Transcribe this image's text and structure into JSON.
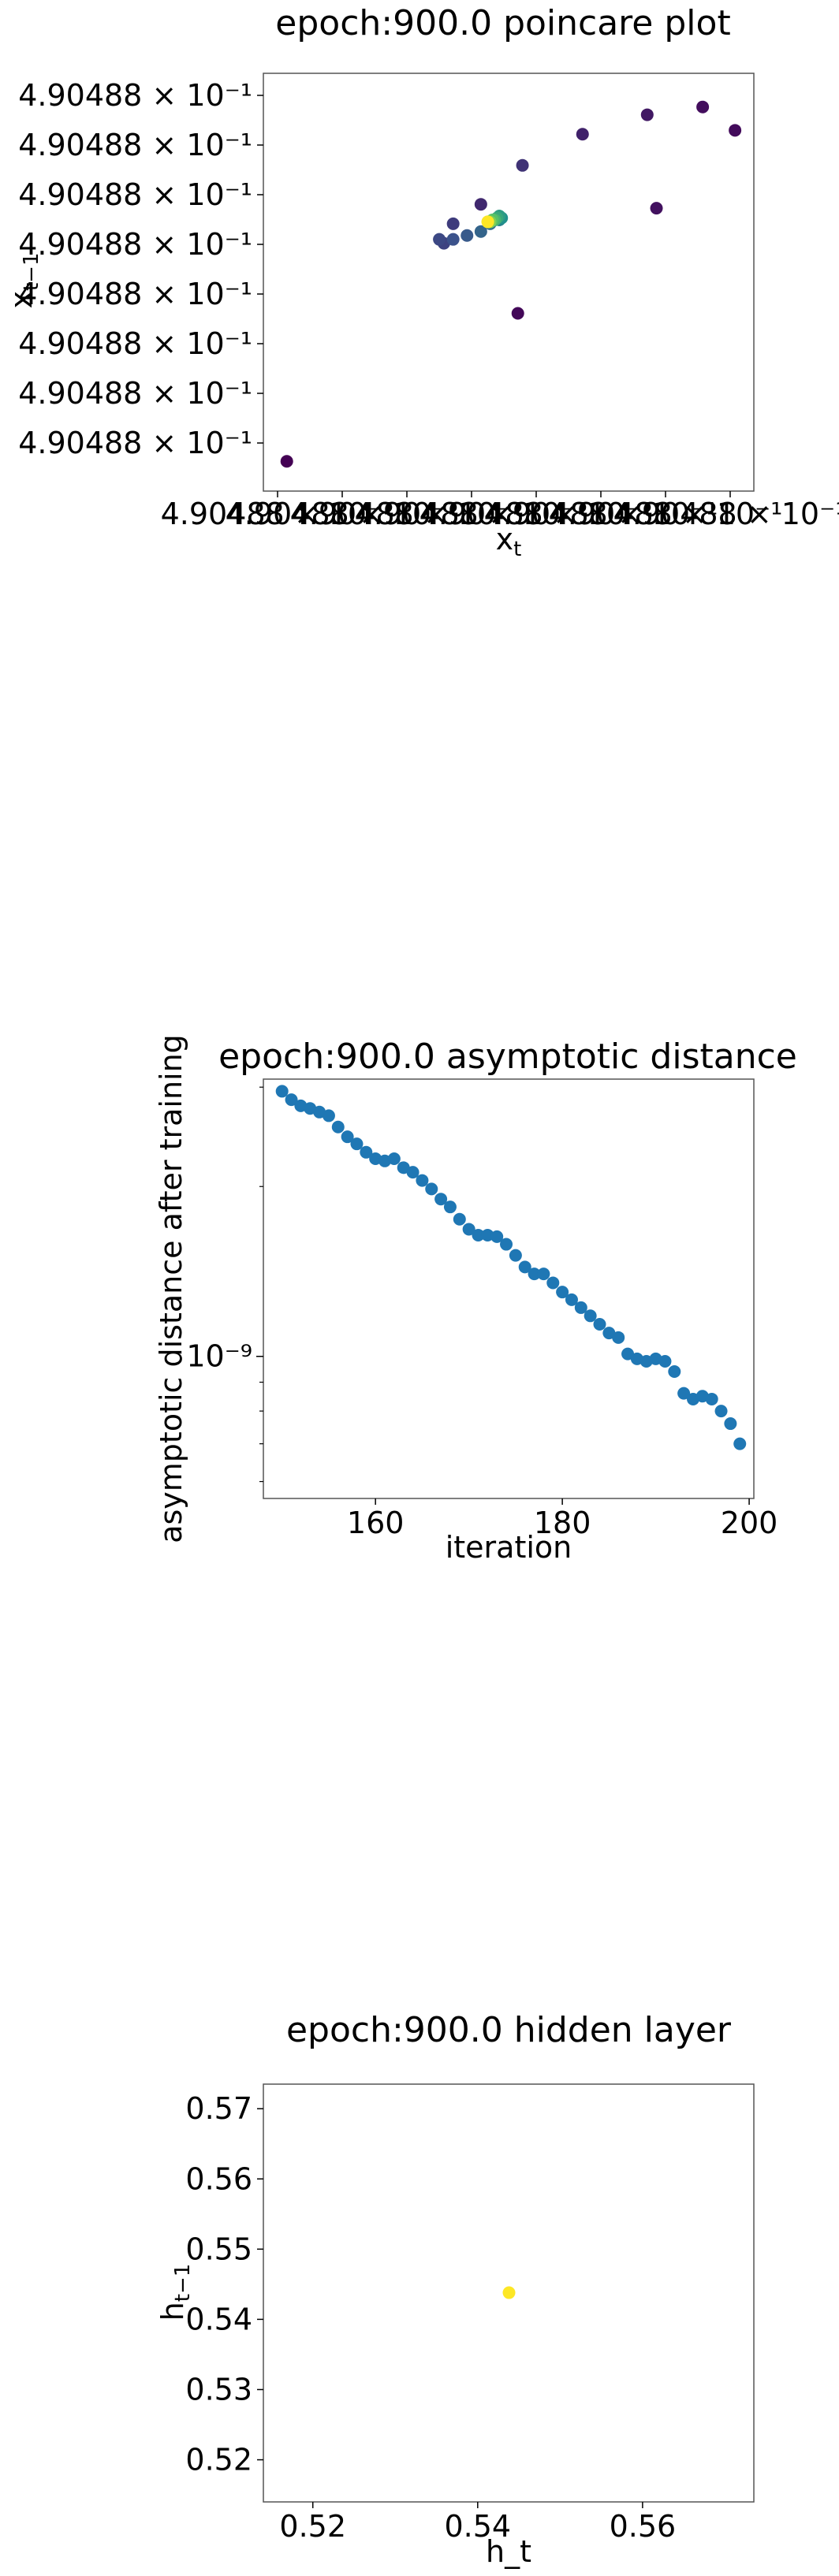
{
  "chart_data": [
    {
      "type": "scatter",
      "title": "epoch:900.0 poincare plot",
      "xlabel_base": "x",
      "xlabel_sub": "t",
      "ylabel_base": "x",
      "ylabel_sub": "t−1",
      "x_tick_labels": [
        "4.90488 × 10⁻¹",
        "4.90488 × 10⁻¹",
        "4.90488 × 10⁻¹",
        "4.90488 × 10⁻¹",
        "4.90488 × 10⁻¹",
        "4.90488 × 10⁻¹",
        "4.90488 × 10⁻¹",
        "4.90488 × 10⁻¹"
      ],
      "y_tick_labels": [
        "4.90488 × 10⁻¹",
        "4.90488 × 10⁻¹",
        "4.90488 × 10⁻¹",
        "4.90488 × 10⁻¹",
        "4.90488 × 10⁻¹",
        "4.90488 × 10⁻¹",
        "4.90488 × 10⁻¹",
        "4.90488 × 10⁻¹"
      ],
      "xlim": [
        0,
        1
      ],
      "ylim": [
        0,
        1
      ],
      "colormap": "viridis",
      "points": [
        {
          "x": 0.02,
          "y": 0.04,
          "c": 0.0
        },
        {
          "x": 0.52,
          "y": 0.42,
          "c": 0.02
        },
        {
          "x": 0.99,
          "y": 0.89,
          "c": 0.03
        },
        {
          "x": 0.92,
          "y": 0.95,
          "c": 0.04
        },
        {
          "x": 0.82,
          "y": 0.69,
          "c": 0.05
        },
        {
          "x": 0.8,
          "y": 0.93,
          "c": 0.07
        },
        {
          "x": 0.66,
          "y": 0.88,
          "c": 0.1
        },
        {
          "x": 0.44,
          "y": 0.7,
          "c": 0.12
        },
        {
          "x": 0.53,
          "y": 0.8,
          "c": 0.15
        },
        {
          "x": 0.38,
          "y": 0.65,
          "c": 0.18
        },
        {
          "x": 0.36,
          "y": 0.6,
          "c": 0.2
        },
        {
          "x": 0.35,
          "y": 0.61,
          "c": 0.22
        },
        {
          "x": 0.38,
          "y": 0.61,
          "c": 0.25
        },
        {
          "x": 0.41,
          "y": 0.62,
          "c": 0.28
        },
        {
          "x": 0.44,
          "y": 0.63,
          "c": 0.32
        },
        {
          "x": 0.46,
          "y": 0.65,
          "c": 0.36
        },
        {
          "x": 0.47,
          "y": 0.66,
          "c": 0.4
        },
        {
          "x": 0.48,
          "y": 0.66,
          "c": 0.44
        },
        {
          "x": 0.485,
          "y": 0.665,
          "c": 0.5
        },
        {
          "x": 0.48,
          "y": 0.67,
          "c": 0.55
        },
        {
          "x": 0.475,
          "y": 0.665,
          "c": 0.6
        },
        {
          "x": 0.47,
          "y": 0.66,
          "c": 0.66
        },
        {
          "x": 0.465,
          "y": 0.66,
          "c": 0.72
        },
        {
          "x": 0.46,
          "y": 0.655,
          "c": 0.8
        },
        {
          "x": 0.455,
          "y": 0.655,
          "c": 0.9
        },
        {
          "x": 0.455,
          "y": 0.655,
          "c": 1.0
        }
      ]
    },
    {
      "type": "scatter",
      "title": "epoch:900.0 asymptotic distance",
      "xlabel": "iteration",
      "ylabel": "asymptotic distance after training",
      "yscale": "log",
      "xlim": [
        148,
        200.5
      ],
      "ylim": [
        5.6e-10,
        3.1e-09
      ],
      "x_ticks": [
        160,
        180,
        200
      ],
      "y_ticks": [
        {
          "value": 1e-09,
          "label": "10⁻⁹"
        }
      ],
      "color": "#1f77b4",
      "x": [
        150,
        151,
        152,
        153,
        154,
        155,
        156,
        157,
        158,
        159,
        160,
        161,
        162,
        163,
        164,
        165,
        166,
        167,
        168,
        169,
        170,
        171,
        172,
        173,
        174,
        175,
        176,
        177,
        178,
        179,
        180,
        181,
        182,
        183,
        184,
        185,
        186,
        187,
        188,
        189,
        190,
        191,
        192,
        193,
        194,
        195,
        196,
        197,
        198,
        199
      ],
      "y": [
        2.95e-09,
        2.85e-09,
        2.78e-09,
        2.75e-09,
        2.71e-09,
        2.67e-09,
        2.55e-09,
        2.45e-09,
        2.38e-09,
        2.3e-09,
        2.24e-09,
        2.22e-09,
        2.24e-09,
        2.16e-09,
        2.12e-09,
        2.05e-09,
        1.98e-09,
        1.9e-09,
        1.84e-09,
        1.75e-09,
        1.68e-09,
        1.64e-09,
        1.64e-09,
        1.63e-09,
        1.58e-09,
        1.51e-09,
        1.44e-09,
        1.4e-09,
        1.4e-09,
        1.35e-09,
        1.3e-09,
        1.26e-09,
        1.22e-09,
        1.18e-09,
        1.14e-09,
        1.1e-09,
        1.08e-09,
        1.01e-09,
        9.9e-10,
        9.8e-10,
        9.9e-10,
        9.8e-10,
        9.4e-10,
        8.6e-10,
        8.4e-10,
        8.5e-10,
        8.4e-10,
        8e-10,
        7.6e-10,
        7e-10
      ]
    },
    {
      "type": "scatter",
      "title": "epoch:900.0 hidden layer",
      "xlabel": "h_t",
      "ylabel_base": "h",
      "ylabel_sub": "t−1",
      "xlim": [
        0.514,
        0.5735
      ],
      "ylim": [
        0.514,
        0.5735
      ],
      "x_ticks": [
        0.52,
        0.54,
        0.56
      ],
      "y_ticks": [
        0.52,
        0.53,
        0.54,
        0.55,
        0.56,
        0.57
      ],
      "color": "#fde725",
      "points": [
        {
          "x": 0.5438,
          "y": 0.5438
        }
      ]
    }
  ]
}
